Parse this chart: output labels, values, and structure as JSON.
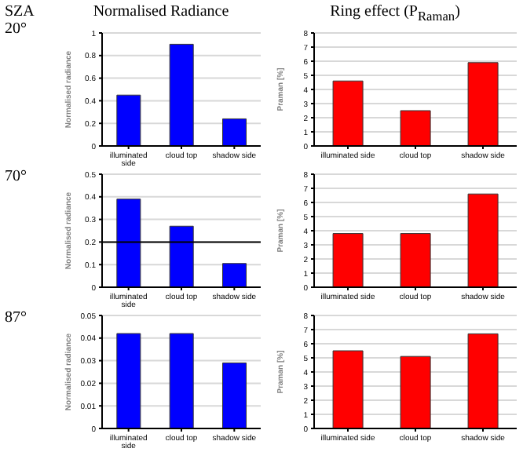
{
  "chart_data": [
    {
      "type": "bar",
      "title": "Normalised Radiance",
      "annotations": [
        "SZA",
        "20°"
      ],
      "ylabel": "Normalised radiance",
      "categories": [
        "illuminated side",
        "cloud top",
        "shadow side"
      ],
      "values": [
        0.45,
        0.9,
        0.24
      ],
      "color": "#0000ff",
      "ylim": [
        0,
        1
      ],
      "yticks": [
        0,
        0.2,
        0.4,
        0.6,
        0.8,
        1
      ],
      "grid": "y"
    },
    {
      "type": "bar",
      "title": "Ring effect (P$_{Raman}$)",
      "ylabel": "Praman [%]",
      "categories": [
        "illuminated side",
        "cloud top",
        "shadow side"
      ],
      "values": [
        4.6,
        2.5,
        5.9
      ],
      "color": "#ff0000",
      "ylim": [
        0,
        8
      ],
      "yticks": [
        0,
        1,
        2,
        3,
        4,
        5,
        6,
        7,
        8
      ],
      "grid": "y"
    },
    {
      "type": "bar",
      "annotations": [
        "70°"
      ],
      "ylabel": "Normalised radiance",
      "categories": [
        "illuminated side",
        "cloud top",
        "shadow side"
      ],
      "values": [
        0.39,
        0.27,
        0.105
      ],
      "color": "#0000ff",
      "ylim": [
        0,
        0.5
      ],
      "yticks": [
        0,
        0.1,
        0.2,
        0.3,
        0.4,
        0.5
      ],
      "grid": "y",
      "ref_lines": [
        {
          "axis": "y",
          "value": 0.2,
          "color": "#000000"
        }
      ]
    },
    {
      "type": "bar",
      "ylabel": "Praman [%]",
      "categories": [
        "illuminated side",
        "cloud top",
        "shadow side"
      ],
      "values": [
        3.8,
        3.8,
        6.6
      ],
      "color": "#ff0000",
      "ylim": [
        0,
        8
      ],
      "yticks": [
        0,
        1,
        2,
        3,
        4,
        5,
        6,
        7,
        8
      ],
      "grid": "y"
    },
    {
      "type": "bar",
      "annotations": [
        "87°"
      ],
      "ylabel": "Normalised radiance",
      "categories": [
        "illuminated side",
        "cloud top",
        "shadow side"
      ],
      "values": [
        0.042,
        0.042,
        0.029
      ],
      "color": "#0000ff",
      "ylim": [
        0,
        0.05
      ],
      "yticks": [
        0,
        0.01,
        0.02,
        0.03,
        0.04,
        0.05
      ],
      "grid": "y"
    },
    {
      "type": "bar",
      "ylabel": "Praman [%]",
      "categories": [
        "illuminated side",
        "cloud top",
        "shadow side"
      ],
      "values": [
        5.5,
        5.1,
        6.7
      ],
      "color": "#ff0000",
      "ylim": [
        0,
        8
      ],
      "yticks": [
        0,
        1,
        2,
        3,
        4,
        5,
        6,
        7,
        8
      ],
      "grid": "y"
    }
  ]
}
